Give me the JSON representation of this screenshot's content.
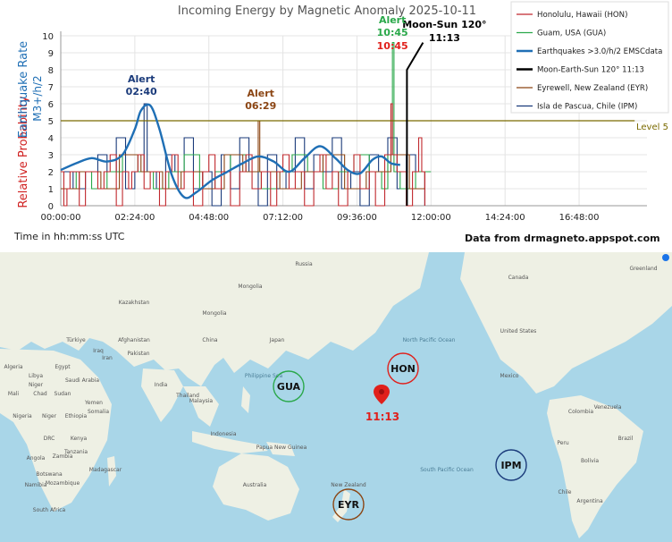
{
  "chart_data": {
    "type": "line",
    "title": "Incoming Energy by Magnetic Anomaly 2025-10-11",
    "ylabel_probability": "Relative Probability",
    "ylabel_rate": "Earthquake Rate",
    "ylabel_unit": "M3+/h/2",
    "xlabel": "Time in hh:mm:ss UTC",
    "source": "Data from drmagneto.appspot.com",
    "ylim": [
      0,
      10
    ],
    "yticks": [
      "0",
      "1",
      "2",
      "3",
      "4",
      "5",
      "6",
      "7",
      "8",
      "9",
      "10"
    ],
    "xticks": [
      {
        "v": 0,
        "label": "00:00:00"
      },
      {
        "v": 2.4,
        "label": "02:24:00"
      },
      {
        "v": 4.8,
        "label": "04:48:00"
      },
      {
        "v": 7.2,
        "label": "07:12:00"
      },
      {
        "v": 9.6,
        "label": "09:36:00"
      },
      {
        "v": 12,
        "label": "12:00:00"
      },
      {
        "v": 14.4,
        "label": "14:24:00"
      },
      {
        "v": 16.8,
        "label": "16:48:00"
      }
    ],
    "xlim": [
      0,
      19
    ],
    "level": {
      "value": 5,
      "label": "Level 5",
      "color": "#7a6a00"
    },
    "legend": [
      {
        "name": "Honolulu, Hawaii (HON)",
        "color": "#c0282d"
      },
      {
        "name": "Guam, USA (GUA)",
        "color": "#2aa84a"
      },
      {
        "name": "Earthquakes >3.0/h/2 EMSCdata",
        "color": "#1f6fb5"
      },
      {
        "name": "Moon-Earth-Sun 120° 11:13",
        "color": "#000000"
      },
      {
        "name": "Eyrewell, New Zealand (EYR)",
        "color": "#8b4513"
      },
      {
        "name": "Isla de Pascua, Chile (IPM)",
        "color": "#1a3a7a"
      }
    ],
    "series": {
      "hon": [
        [
          0,
          2
        ],
        [
          0.1,
          0
        ],
        [
          0.2,
          1
        ],
        [
          0.3,
          2
        ],
        [
          0.6,
          0
        ],
        [
          0.8,
          2
        ],
        [
          1.2,
          1
        ],
        [
          1.4,
          2
        ],
        [
          1.6,
          3
        ],
        [
          1.8,
          0
        ],
        [
          2.0,
          2
        ],
        [
          2.2,
          1
        ],
        [
          2.3,
          2
        ],
        [
          2.5,
          3
        ],
        [
          2.7,
          1
        ],
        [
          2.9,
          2
        ],
        [
          3.2,
          0
        ],
        [
          3.4,
          2
        ],
        [
          3.6,
          3
        ],
        [
          3.8,
          1
        ],
        [
          4.0,
          2
        ],
        [
          4.3,
          0
        ],
        [
          4.6,
          2
        ],
        [
          4.8,
          3
        ],
        [
          5.0,
          1
        ],
        [
          5.2,
          2
        ],
        [
          5.5,
          0
        ],
        [
          5.8,
          2
        ],
        [
          6.0,
          3
        ],
        [
          6.2,
          1
        ],
        [
          6.5,
          2
        ],
        [
          6.8,
          0
        ],
        [
          7.0,
          2
        ],
        [
          7.2,
          3
        ],
        [
          7.4,
          1
        ],
        [
          7.6,
          2
        ],
        [
          7.9,
          0
        ],
        [
          8.2,
          2
        ],
        [
          8.4,
          3
        ],
        [
          8.6,
          1
        ],
        [
          8.8,
          2
        ],
        [
          9.0,
          0
        ],
        [
          9.3,
          2
        ],
        [
          9.5,
          3
        ],
        [
          9.7,
          1
        ],
        [
          10.0,
          2
        ],
        [
          10.2,
          0
        ],
        [
          10.5,
          3
        ],
        [
          10.7,
          6
        ],
        [
          10.75,
          3
        ],
        [
          10.9,
          2
        ],
        [
          11.2,
          0
        ],
        [
          11.4,
          2
        ],
        [
          11.6,
          4
        ],
        [
          11.7,
          2
        ],
        [
          11.8,
          0
        ]
      ],
      "gua": [
        [
          0,
          1
        ],
        [
          0.5,
          2
        ],
        [
          1.0,
          1
        ],
        [
          1.5,
          2
        ],
        [
          2.0,
          3
        ],
        [
          2.5,
          2
        ],
        [
          3.0,
          1
        ],
        [
          3.5,
          2
        ],
        [
          4.0,
          3
        ],
        [
          4.5,
          1
        ],
        [
          5.0,
          2
        ],
        [
          5.5,
          3
        ],
        [
          6.0,
          2
        ],
        [
          6.5,
          1
        ],
        [
          7.0,
          2
        ],
        [
          7.5,
          3
        ],
        [
          8.0,
          2
        ],
        [
          8.5,
          1
        ],
        [
          9.0,
          2
        ],
        [
          9.5,
          3
        ],
        [
          10.0,
          2
        ],
        [
          10.4,
          1
        ],
        [
          10.6,
          3
        ],
        [
          10.75,
          9.6
        ],
        [
          10.8,
          2
        ],
        [
          11.0,
          1
        ],
        [
          11.5,
          2
        ],
        [
          12.0,
          2
        ]
      ],
      "ipm": [
        [
          0,
          2
        ],
        [
          0.4,
          1
        ],
        [
          0.8,
          2
        ],
        [
          1.2,
          3
        ],
        [
          1.5,
          2
        ],
        [
          1.8,
          4
        ],
        [
          2.1,
          1
        ],
        [
          2.4,
          2
        ],
        [
          2.7,
          6
        ],
        [
          2.8,
          2
        ],
        [
          3.1,
          1
        ],
        [
          3.4,
          3
        ],
        [
          3.7,
          2
        ],
        [
          4.0,
          4
        ],
        [
          4.3,
          1
        ],
        [
          4.6,
          2
        ],
        [
          4.9,
          0
        ],
        [
          5.2,
          3
        ],
        [
          5.5,
          1
        ],
        [
          5.8,
          4
        ],
        [
          6.1,
          2
        ],
        [
          6.4,
          0
        ],
        [
          6.7,
          3
        ],
        [
          7.0,
          1
        ],
        [
          7.3,
          2
        ],
        [
          7.6,
          4
        ],
        [
          7.9,
          1
        ],
        [
          8.2,
          3
        ],
        [
          8.5,
          2
        ],
        [
          8.8,
          4
        ],
        [
          9.1,
          1
        ],
        [
          9.4,
          2
        ],
        [
          9.7,
          0
        ],
        [
          10.0,
          3
        ],
        [
          10.3,
          2
        ],
        [
          10.6,
          4
        ],
        [
          10.9,
          1
        ],
        [
          11.2,
          3
        ],
        [
          11.5,
          2
        ],
        [
          11.8,
          0
        ]
      ],
      "eyr": [
        [
          0,
          1
        ],
        [
          0.6,
          2
        ],
        [
          1.3,
          1
        ],
        [
          1.9,
          3
        ],
        [
          2.6,
          2
        ],
        [
          3.3,
          1
        ],
        [
          3.9,
          2
        ],
        [
          4.6,
          1
        ],
        [
          5.3,
          3
        ],
        [
          5.9,
          2
        ],
        [
          6.4,
          5
        ],
        [
          6.45,
          2
        ],
        [
          7.1,
          1
        ],
        [
          7.8,
          2
        ],
        [
          8.5,
          3
        ],
        [
          9.2,
          1
        ],
        [
          9.9,
          2
        ],
        [
          10.7,
          3
        ],
        [
          11.3,
          1
        ],
        [
          11.8,
          2
        ]
      ],
      "eq_smooth": [
        [
          0,
          2.1
        ],
        [
          0.5,
          2.5
        ],
        [
          1.0,
          2.8
        ],
        [
          1.5,
          2.6
        ],
        [
          2.0,
          3.0
        ],
        [
          2.4,
          4.5
        ],
        [
          2.6,
          5.6
        ],
        [
          2.9,
          5.9
        ],
        [
          3.2,
          4.5
        ],
        [
          3.6,
          1.8
        ],
        [
          4.0,
          0.5
        ],
        [
          4.4,
          0.8
        ],
        [
          4.9,
          1.5
        ],
        [
          5.4,
          2.0
        ],
        [
          5.9,
          2.5
        ],
        [
          6.4,
          2.9
        ],
        [
          6.9,
          2.6
        ],
        [
          7.4,
          2.0
        ],
        [
          7.9,
          2.8
        ],
        [
          8.4,
          3.5
        ],
        [
          8.9,
          2.8
        ],
        [
          9.3,
          2.1
        ],
        [
          9.7,
          1.9
        ],
        [
          10.1,
          2.7
        ],
        [
          10.4,
          2.9
        ],
        [
          10.7,
          2.5
        ],
        [
          11.0,
          2.4
        ]
      ]
    },
    "moon_event": {
      "x": 11.22,
      "y": 8.0,
      "label": "Moon-Sun 120°",
      "time": "11:13"
    },
    "annotations": [
      {
        "label": "Alert",
        "time": "02:40",
        "x": 2.67,
        "color": "#1a3a7a"
      },
      {
        "label": "Alert",
        "time": "06:29",
        "x": 6.48,
        "color": "#8b4513"
      },
      {
        "label": "Alert",
        "time": "10:45",
        "x": 10.75,
        "color": "#2aa84a"
      },
      {
        "label": "",
        "time": "10:45",
        "x": 10.75,
        "color": "#e0201b"
      }
    ]
  },
  "map": {
    "stations": [
      {
        "code": "GUA",
        "color": "#2aa84a"
      },
      {
        "code": "HON",
        "color": "#e0201b"
      },
      {
        "code": "IPM",
        "color": "#1a3a7a"
      },
      {
        "code": "EYR",
        "color": "#8b4513"
      }
    ],
    "epicenter_time": "11:13",
    "labels": [
      "Kazakhstan",
      "China",
      "Mongolia",
      "India",
      "Iran",
      "Saudi Arabia",
      "Egypt",
      "Libya",
      "Algeria",
      "Chad",
      "Sudan",
      "Ethiopia",
      "Nigeria",
      "Kenya",
      "DRC",
      "Angola",
      "Namibia",
      "South Africa",
      "Mozambique",
      "Madagascar",
      "Indonesia",
      "Philippine Sea",
      "Australia",
      "Papua New Guinea",
      "North Pacific Ocean",
      "South Pacific Ocean",
      "Canada",
      "United States",
      "Mexico",
      "Venezuela",
      "Colombia",
      "Peru",
      "Brazil",
      "Bolivia",
      "Chile",
      "Argentina",
      "Russia",
      "Japan",
      "Malaysia",
      "Thailand",
      "Pakistan",
      "Afghanistan",
      "Türkiye",
      "Iraq",
      "Yemen",
      "Mali",
      "Niger",
      "Niger",
      "Somalia",
      "Tanzania",
      "Zambia",
      "Botswana",
      "New Zealand",
      "Mongolia",
      "Greenland"
    ]
  }
}
